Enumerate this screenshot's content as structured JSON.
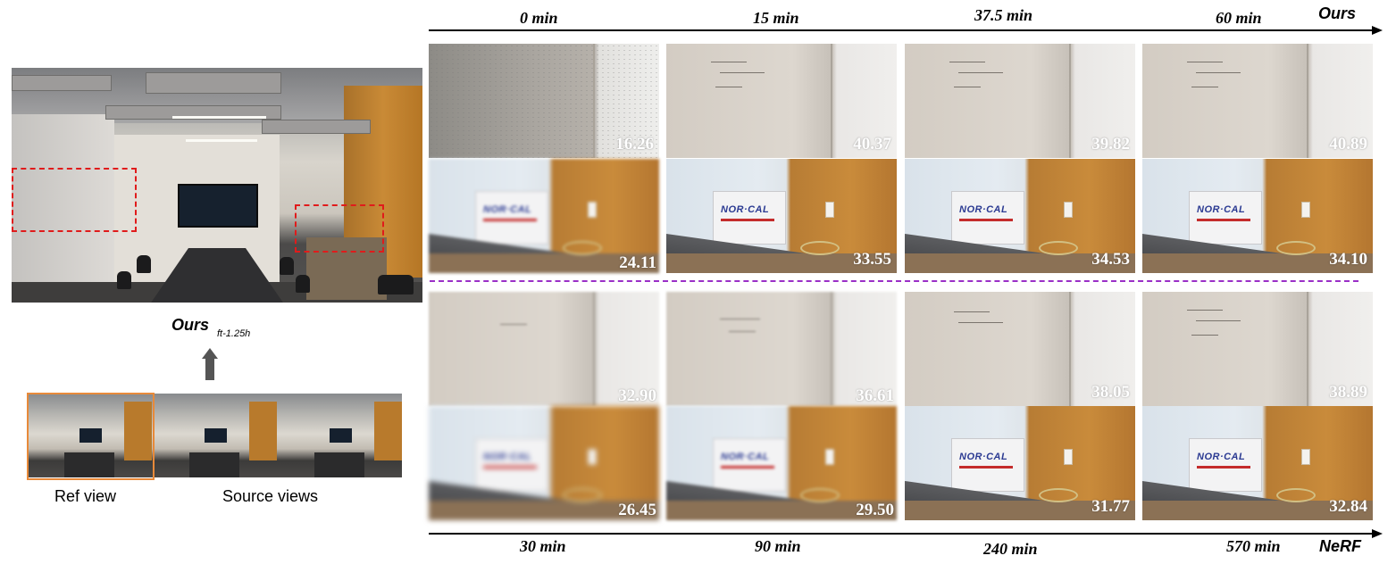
{
  "left_panel": {
    "method_label": "Ours",
    "method_subscript": "ft-1.25h",
    "ref_caption": "Ref view",
    "source_caption": "Source views"
  },
  "top_row": {
    "method": "Ours",
    "times": [
      "0 min",
      "15 min",
      "37.5 min",
      "60 min"
    ],
    "psnr_whiteboard": [
      "16.26",
      "40.37",
      "39.82",
      "40.89"
    ],
    "psnr_box": [
      "24.11",
      "33.55",
      "34.53",
      "34.10"
    ]
  },
  "bottom_row": {
    "method": "NeRF",
    "times": [
      "30 min",
      "90 min",
      "240 min",
      "570 min"
    ],
    "psnr_whiteboard": [
      "32.90",
      "36.61",
      "38.05",
      "38.89"
    ],
    "psnr_box": [
      "26.45",
      "29.50",
      "31.77",
      "32.84"
    ]
  },
  "box_text": "NOR·CAL",
  "colors": {
    "roi": "#e01b1b",
    "ref_frame": "#e88a3a",
    "separator": "#9a2fc7"
  }
}
